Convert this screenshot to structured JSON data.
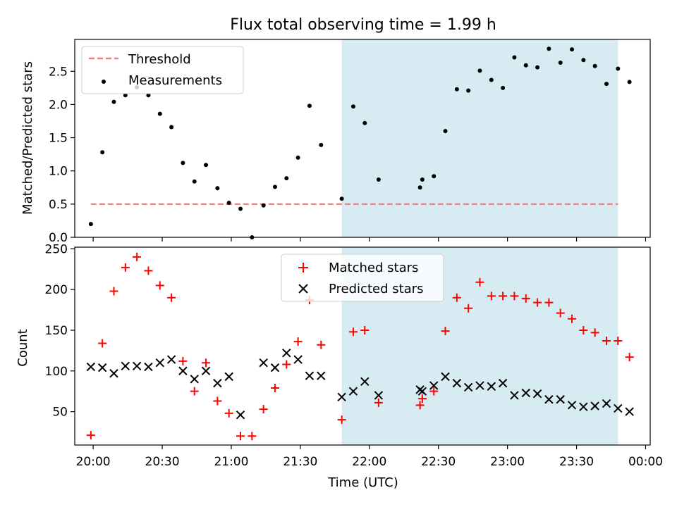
{
  "title": "Flux total observing time = 1.99 h",
  "xlabel": "Time (UTC)",
  "x_ticks": [
    "20:00",
    "20:30",
    "21:00",
    "21:30",
    "22:00",
    "22:30",
    "23:00",
    "23:30",
    "00:00"
  ],
  "colors": {
    "threshold": "#f08080",
    "measurements": "#000000",
    "matched": "#ff0000",
    "predicted": "#000000",
    "shade": "#add8e6"
  },
  "chart_data": [
    {
      "type": "scatter",
      "ylabel": "Matched/Predicted stars",
      "xlim": [
        "19:52",
        "00:02"
      ],
      "ylim": [
        0,
        2.98
      ],
      "yticks": [
        0.0,
        0.5,
        1.0,
        1.5,
        2.0,
        2.5
      ],
      "ytick_labels": [
        "0.0",
        "0.5",
        "1.0",
        "1.5",
        "2.0",
        "2.5"
      ],
      "shaded_interval": [
        "21:48",
        "23:48"
      ],
      "legend": {
        "position": "top-left",
        "entries": [
          "Threshold",
          "Measurements"
        ]
      },
      "series": [
        {
          "name": "Threshold",
          "kind": "dashed-line",
          "x": [
            "19:59",
            "23:48"
          ],
          "y": [
            0.5,
            0.5
          ]
        },
        {
          "name": "Measurements",
          "kind": "dot",
          "x": [
            "19:59",
            "20:04",
            "20:09",
            "20:14",
            "20:19",
            "20:24",
            "20:29",
            "20:34",
            "20:39",
            "20:44",
            "20:49",
            "20:54",
            "20:59",
            "21:04",
            "21:09",
            "21:14",
            "21:19",
            "21:24",
            "21:29",
            "21:34",
            "21:39",
            "21:48",
            "21:53",
            "21:58",
            "22:04",
            "22:22",
            "22:23",
            "22:28",
            "22:33",
            "22:38",
            "22:43",
            "22:48",
            "22:53",
            "22:58",
            "23:03",
            "23:08",
            "23:13",
            "23:18",
            "23:23",
            "23:28",
            "23:33",
            "23:38",
            "23:43",
            "23:48",
            "23:53"
          ],
          "y": [
            0.2,
            1.28,
            2.04,
            2.14,
            2.26,
            2.14,
            1.86,
            1.66,
            1.12,
            0.84,
            1.09,
            0.74,
            0.52,
            0.43,
            0.0,
            0.48,
            0.76,
            0.89,
            1.2,
            1.98,
            1.39,
            0.58,
            1.97,
            1.72,
            0.87,
            0.75,
            0.87,
            0.92,
            1.6,
            2.23,
            2.21,
            2.51,
            2.37,
            2.25,
            2.71,
            2.59,
            2.56,
            2.84,
            2.63,
            2.83,
            2.67,
            2.58,
            2.31,
            2.54,
            2.34
          ]
        }
      ]
    },
    {
      "type": "scatter",
      "ylabel": "Count",
      "xlim": [
        "19:52",
        "00:02"
      ],
      "ylim": [
        9,
        252
      ],
      "yticks": [
        50,
        100,
        150,
        200,
        250
      ],
      "ytick_labels": [
        "50",
        "100",
        "150",
        "200",
        "250"
      ],
      "shaded_interval": [
        "21:48",
        "23:48"
      ],
      "legend": {
        "position": "top-center",
        "entries": [
          "Matched stars",
          "Predicted stars"
        ]
      },
      "series": [
        {
          "name": "Matched stars",
          "kind": "plus",
          "x": [
            "19:59",
            "20:04",
            "20:09",
            "20:14",
            "20:19",
            "20:24",
            "20:29",
            "20:34",
            "20:39",
            "20:44",
            "20:49",
            "20:54",
            "20:59",
            "21:04",
            "21:09",
            "21:14",
            "21:19",
            "21:24",
            "21:29",
            "21:34",
            "21:39",
            "21:48",
            "21:53",
            "21:58",
            "22:04",
            "22:22",
            "22:23",
            "22:28",
            "22:33",
            "22:38",
            "22:43",
            "22:48",
            "22:53",
            "22:58",
            "23:03",
            "23:08",
            "23:13",
            "23:18",
            "23:23",
            "23:28",
            "23:33",
            "23:38",
            "23:43",
            "23:48",
            "23:53"
          ],
          "y": [
            21,
            134,
            198,
            227,
            240,
            223,
            205,
            190,
            112,
            75,
            110,
            63,
            48,
            20,
            20,
            53,
            79,
            108,
            136,
            187,
            132,
            40,
            148,
            150,
            61,
            58,
            66,
            75,
            149,
            190,
            177,
            209,
            192,
            192,
            192,
            189,
            184,
            184,
            171,
            164,
            150,
            147,
            137,
            137,
            117
          ]
        },
        {
          "name": "Predicted stars",
          "kind": "x",
          "x": [
            "19:59",
            "20:04",
            "20:09",
            "20:14",
            "20:19",
            "20:24",
            "20:29",
            "20:34",
            "20:39",
            "20:44",
            "20:49",
            "20:54",
            "20:59",
            "21:04",
            "21:14",
            "21:19",
            "21:24",
            "21:29",
            "21:34",
            "21:39",
            "21:48",
            "21:53",
            "21:58",
            "22:04",
            "22:22",
            "22:23",
            "22:28",
            "22:33",
            "22:38",
            "22:43",
            "22:48",
            "22:53",
            "22:58",
            "23:03",
            "23:08",
            "23:13",
            "23:18",
            "23:23",
            "23:28",
            "23:33",
            "23:38",
            "23:43",
            "23:48",
            "23:53"
          ],
          "y": [
            105,
            104,
            97,
            106,
            106,
            105,
            110,
            114,
            100,
            90,
            100,
            85,
            93,
            46,
            110,
            104,
            122,
            114,
            94,
            94,
            68,
            75,
            87,
            70,
            77,
            75,
            82,
            93,
            85,
            80,
            82,
            81,
            85,
            70,
            73,
            72,
            65,
            65,
            58,
            56,
            57,
            60,
            54,
            50
          ]
        }
      ]
    }
  ]
}
